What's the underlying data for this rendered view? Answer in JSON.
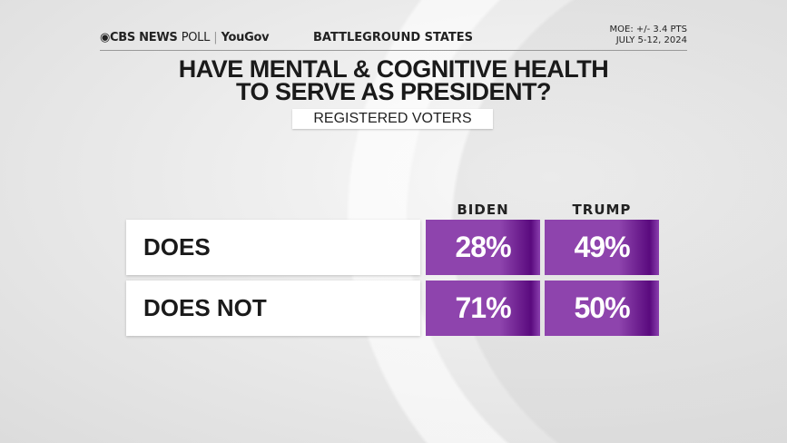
{
  "header": {
    "brand": "CBS NEWS",
    "brand_suffix": "POLL",
    "partner": "YouGov",
    "section": "BATTLEGROUND STATES",
    "moe": "MOE: +/- 3.4 PTS",
    "dates": "JULY 5-12, 2024"
  },
  "chart_data": {
    "type": "table",
    "title_line1": "HAVE MENTAL & COGNITIVE HEALTH",
    "title_line2": "TO SERVE AS PRESIDENT?",
    "subtitle": "REGISTERED VOTERS",
    "columns": [
      "BIDEN",
      "TRUMP"
    ],
    "rows": [
      {
        "label": "DOES",
        "values": [
          "28%",
          "49%"
        ]
      },
      {
        "label": "DOES NOT",
        "values": [
          "71%",
          "50%"
        ]
      }
    ],
    "colors": {
      "cell": "#8e44ad",
      "cell_dark": "#5a0a7e"
    }
  }
}
